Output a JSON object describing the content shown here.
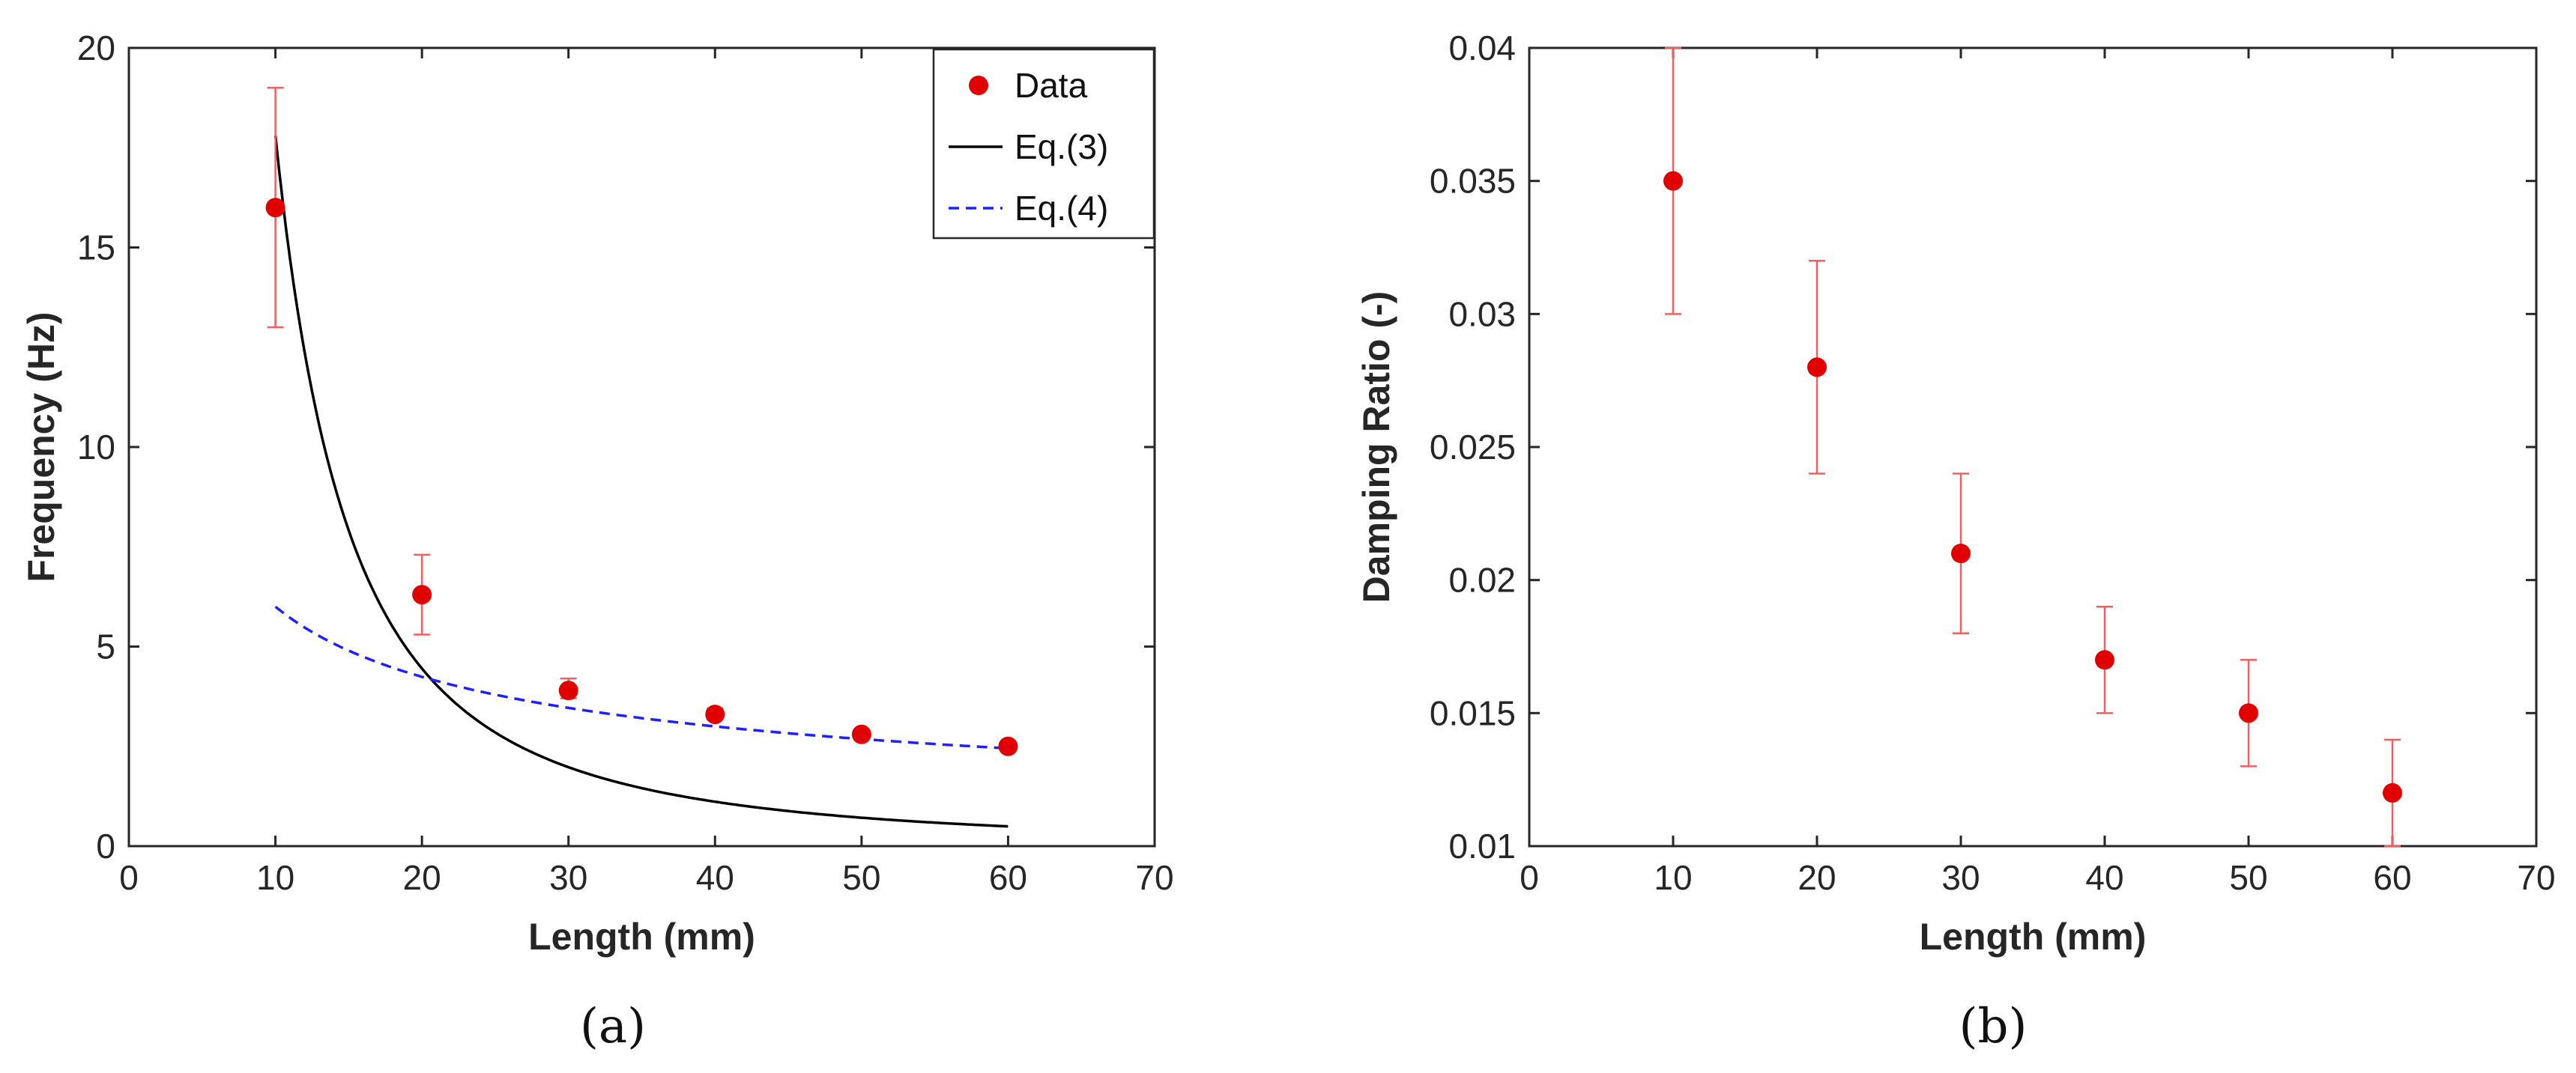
{
  "chart_data": [
    {
      "type": "scatter",
      "panel_label": "(a)",
      "xlabel": "Length (mm)",
      "ylabel": "Frequency (Hz)",
      "xlim": [
        0,
        70
      ],
      "ylim": [
        0,
        20
      ],
      "xticks": [
        "0",
        "10",
        "20",
        "30",
        "40",
        "50",
        "60",
        "70"
      ],
      "yticks": [
        "0",
        "5",
        "10",
        "15",
        "20"
      ],
      "legend_position": "top-right",
      "series": [
        {
          "name": "Data",
          "kind": "markers",
          "color": "#e00000",
          "errorbar_color": "#f06060",
          "x": [
            10,
            20,
            30,
            40,
            50,
            60
          ],
          "y": [
            16.0,
            6.3,
            3.9,
            3.3,
            2.8,
            2.5
          ],
          "y_low": [
            13.0,
            5.3,
            3.7,
            3.2,
            2.7,
            2.45
          ],
          "y_high": [
            19.0,
            7.3,
            4.2,
            3.45,
            2.9,
            2.6
          ]
        },
        {
          "name": "Eq.(3)",
          "kind": "line",
          "style": "solid",
          "color": "#000000",
          "formula": "17.8 * (10/x)^2",
          "x_range": [
            10,
            60
          ]
        },
        {
          "name": "Eq.(4)",
          "kind": "line",
          "style": "dashed",
          "color": "#1f1fff",
          "formula": "6.0 * (10/x)^0.5",
          "x_range": [
            10,
            60
          ]
        }
      ]
    },
    {
      "type": "scatter",
      "panel_label": "(b)",
      "xlabel": "Length (mm)",
      "ylabel": "Damping Ratio (-)",
      "xlim": [
        0,
        70
      ],
      "ylim": [
        0.01,
        0.04
      ],
      "xticks": [
        "0",
        "10",
        "20",
        "30",
        "40",
        "50",
        "60",
        "70"
      ],
      "yticks": [
        "0.01",
        "0.015",
        "0.02",
        "0.025",
        "0.03",
        "0.035",
        "0.04"
      ],
      "series": [
        {
          "name": "Data",
          "kind": "markers",
          "color": "#e00000",
          "errorbar_color": "#f06060",
          "x": [
            10,
            20,
            30,
            40,
            50,
            60
          ],
          "y": [
            0.035,
            0.028,
            0.021,
            0.017,
            0.015,
            0.012
          ],
          "y_low": [
            0.03,
            0.024,
            0.018,
            0.015,
            0.013,
            0.01
          ],
          "y_high": [
            0.04,
            0.032,
            0.024,
            0.019,
            0.017,
            0.014
          ]
        }
      ]
    }
  ]
}
